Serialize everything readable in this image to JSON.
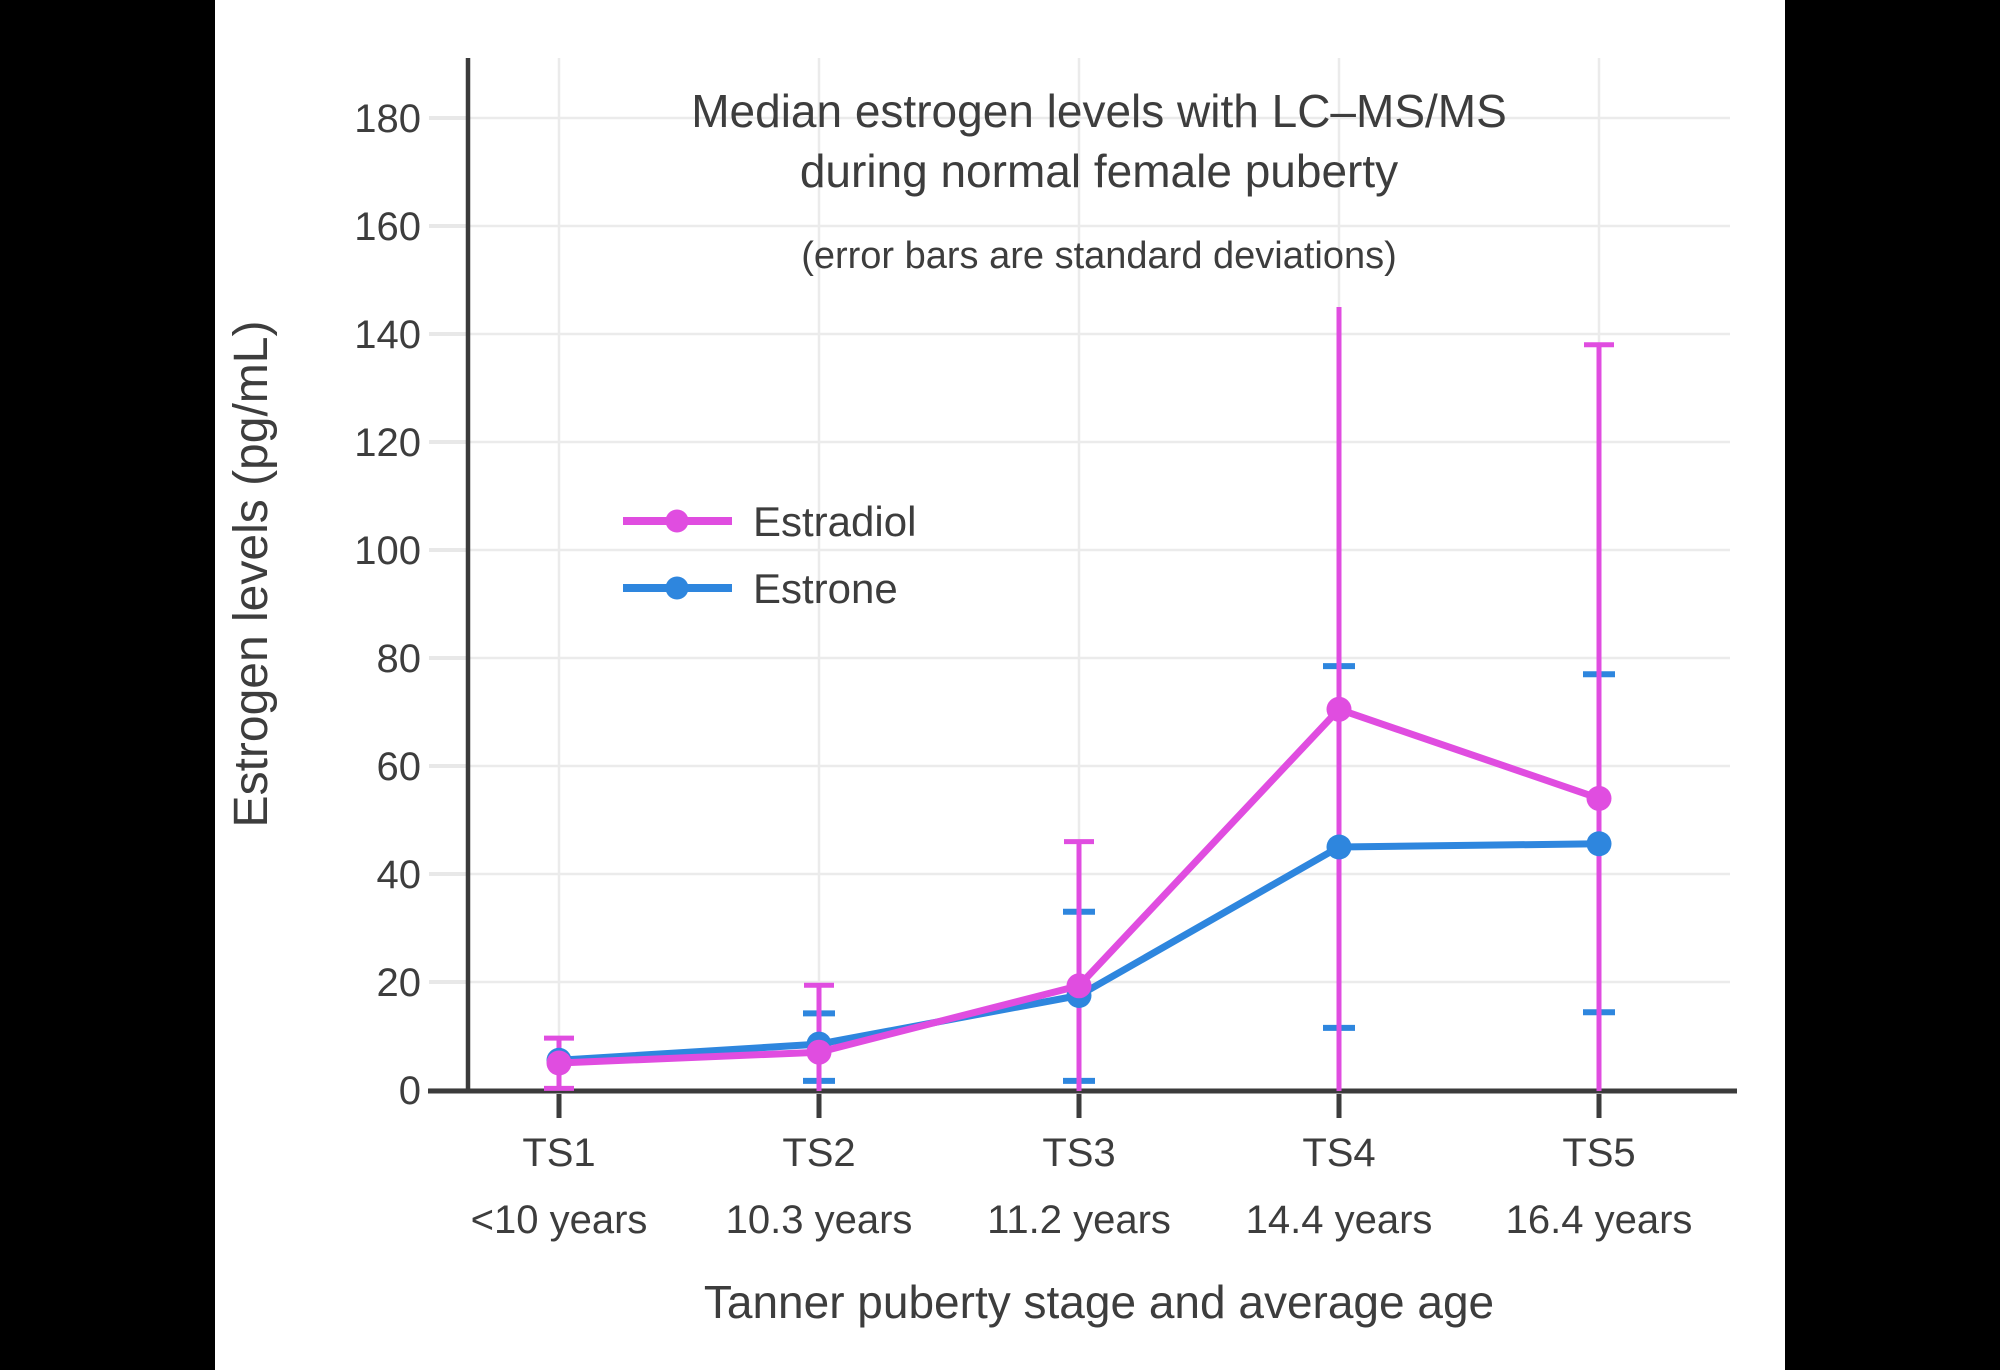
{
  "chart_data": {
    "type": "line",
    "title": "Median estrogen levels with LC–MS/MS",
    "title_line2": "during normal female puberty",
    "subtitle": "(error bars are standard deviations)",
    "xlabel": "Tanner puberty stage and average age",
    "ylabel": "Estrogen levels (pg/mL)",
    "categories": [
      "TS1",
      "TS2",
      "TS3",
      "TS4",
      "TS5"
    ],
    "category_ages": [
      "<10 years",
      "10.3 years",
      "11.2 years",
      "14.4 years",
      "16.4 years"
    ],
    "y_ticks": [
      0,
      20,
      40,
      60,
      80,
      100,
      120,
      140,
      160,
      180
    ],
    "ylim": [
      0,
      191
    ],
    "grid": true,
    "legend_position": "inside-upper-left",
    "error_bar_note": "error bounds are absolute y-values read from the plot",
    "series": [
      {
        "name": "Estradiol",
        "color": "#E04DE0",
        "values": [
          5,
          7,
          19.3,
          70.5,
          54
        ],
        "error_low": [
          0.3,
          0,
          0,
          0,
          0
        ],
        "error_high": [
          9.6,
          19.4,
          46,
          145,
          138
        ],
        "cap_low": [
          true,
          false,
          false,
          false,
          false
        ],
        "cap_high": [
          true,
          true,
          true,
          false,
          true
        ]
      },
      {
        "name": "Estrone",
        "color": "#2E86DE",
        "values": [
          5.5,
          8.5,
          17.5,
          45,
          45.6
        ],
        "error_low": [
          null,
          1.7,
          1.7,
          11.5,
          14.4
        ],
        "error_high": [
          null,
          14.2,
          33,
          78.5,
          77
        ]
      }
    ]
  },
  "colors": {
    "background": "#000000",
    "plot_background": "#ffffff",
    "text": "#3D3D3D",
    "axis": "#3B3B3B",
    "gridline": "#EBEBEB",
    "y_tick": "#E8E8E8",
    "estradiol": "#E04DE0",
    "estrone": "#2E86DE"
  }
}
